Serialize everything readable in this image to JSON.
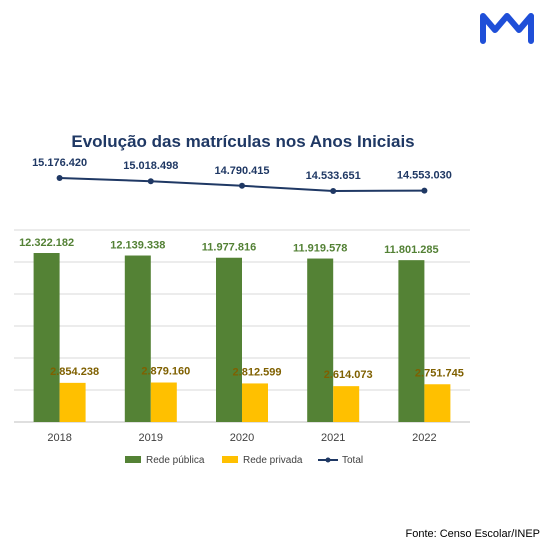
{
  "source": "Fonte: Censo Escolar/INEP",
  "brand_logo": "mm-logo-icon",
  "colors": {
    "public": "#548235",
    "private": "#ffc000",
    "total": "#1f3864",
    "grid": "#d9d9d9",
    "logo": "#1f4fd8"
  },
  "chart_data": {
    "type": "bar",
    "title": "Evolução das matrículas nos Anos Iniciais",
    "categories": [
      "2018",
      "2019",
      "2020",
      "2021",
      "2022"
    ],
    "series": [
      {
        "name": "Rede pública",
        "type": "bar",
        "values": [
          12322182,
          12139338,
          11977816,
          11919578,
          11801285
        ],
        "labels": [
          "12.322.182",
          "12.139.338",
          "11.977.816",
          "11.919.578",
          "11.801.285"
        ]
      },
      {
        "name": "Rede privada",
        "type": "bar",
        "values": [
          2854238,
          2879160,
          2812599,
          2614073,
          2751745
        ],
        "labels": [
          "2.854.238",
          "2.879.160",
          "2.812.599",
          "2.614.073",
          "2.751.745"
        ]
      },
      {
        "name": "Total",
        "type": "line",
        "values": [
          15176420,
          15018498,
          14790415,
          14533651,
          14553030
        ],
        "labels": [
          "15.176.420",
          "15.018.498",
          "14.790.415",
          "14.533.651",
          "14.553.030"
        ]
      }
    ],
    "ylim": [
      0,
      14000000
    ],
    "grid": true,
    "legend_position": "bottom"
  }
}
